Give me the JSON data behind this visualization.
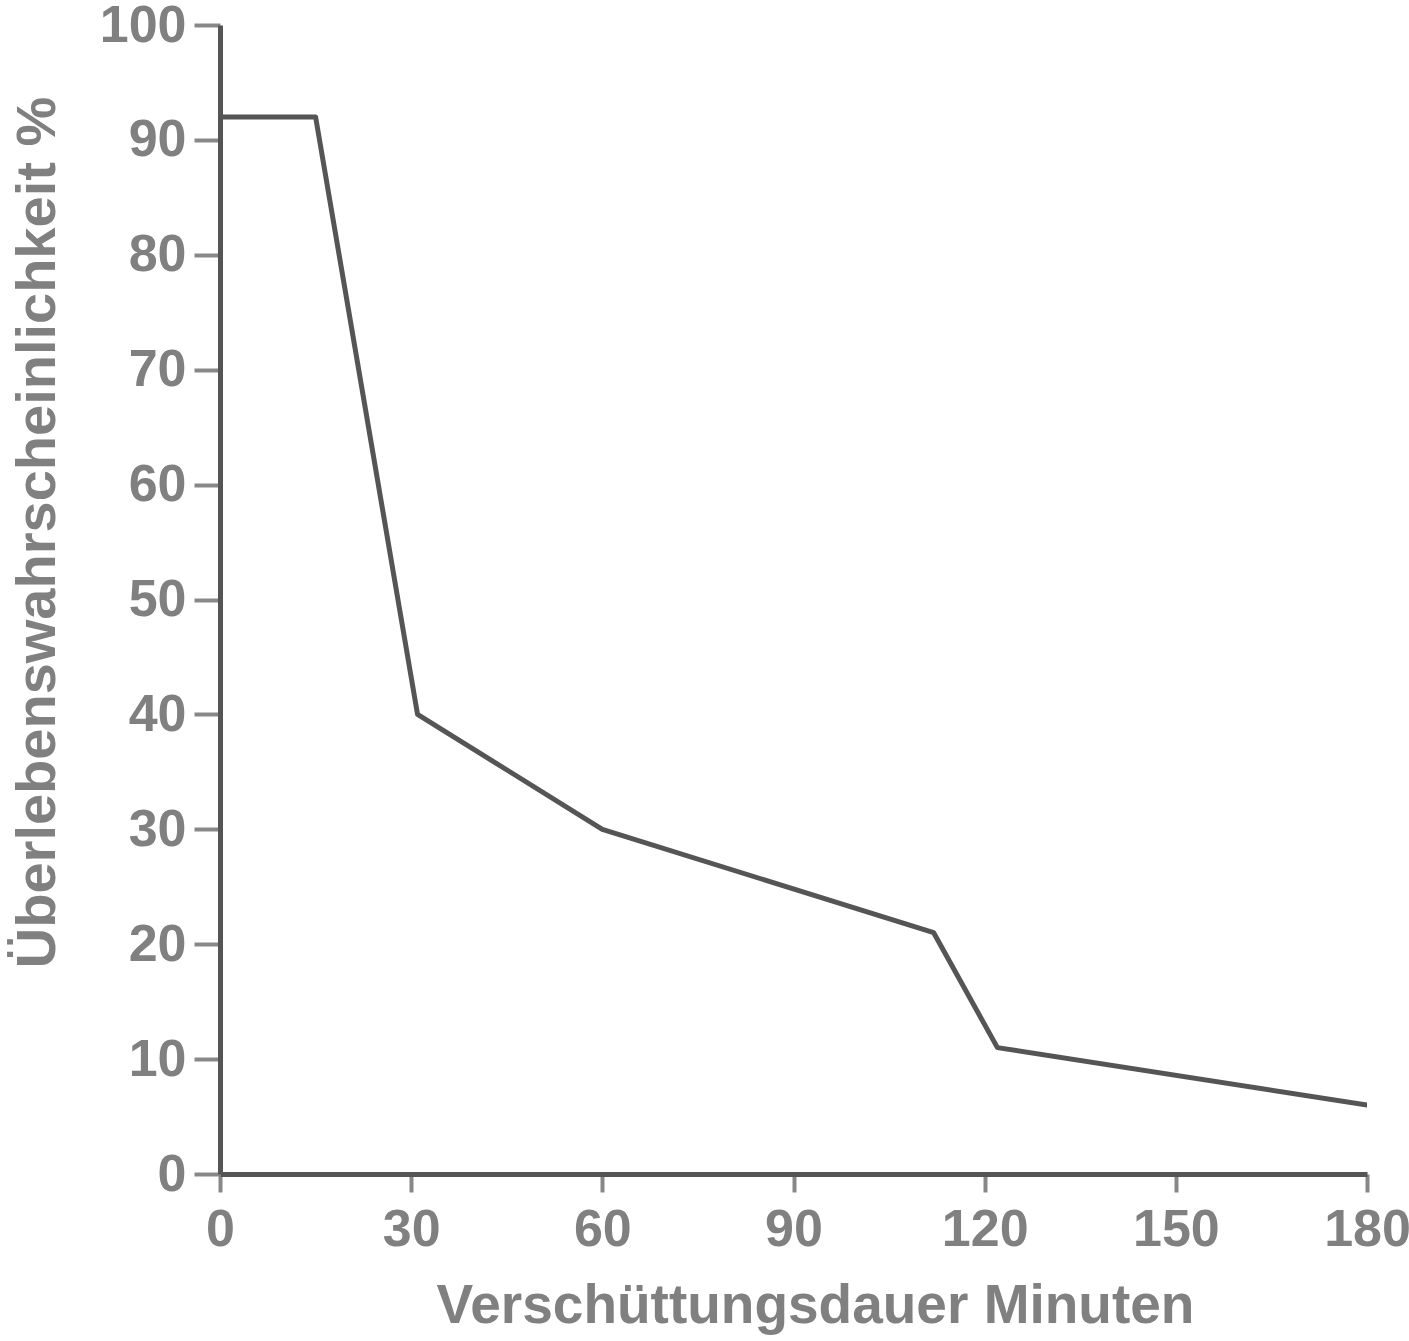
{
  "chart_data": {
    "type": "line",
    "xlabel": "Verschüttungsdauer Minuten",
    "ylabel": "Überlebenswahrscheinlichkeit %",
    "x": [
      0,
      15,
      31,
      60,
      112,
      122,
      180
    ],
    "series": [
      {
        "color": "#555555",
        "values": [
          92,
          92,
          40,
          30,
          21,
          11,
          6
        ]
      }
    ],
    "xlim": [
      0,
      180
    ],
    "ylim": [
      0,
      100
    ],
    "xticks": [
      0,
      30,
      60,
      90,
      120,
      150,
      180
    ],
    "yticks": [
      0,
      10,
      20,
      30,
      40,
      50,
      60,
      70,
      80,
      90,
      100
    ],
    "grid": false,
    "marker": "none",
    "line_style": "solid"
  }
}
